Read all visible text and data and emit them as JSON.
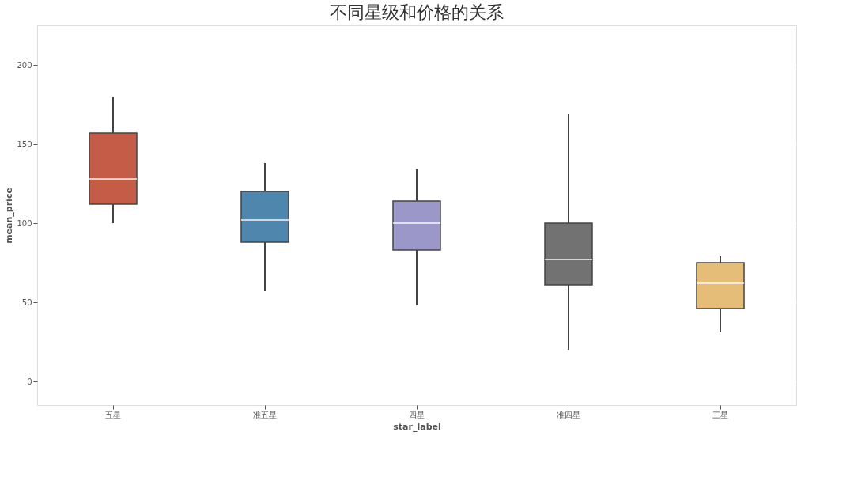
{
  "chart_data": {
    "type": "box",
    "title": "不同星级和价格的关系",
    "xlabel": "star_label",
    "ylabel": "mean_price",
    "categories": [
      "五星",
      "准五星",
      "四星",
      "准四星",
      "三星"
    ],
    "colors": [
      "#c45c48",
      "#4f86ad",
      "#9b97c8",
      "#727272",
      "#e5bc78"
    ],
    "boxes": [
      {
        "low": 100,
        "q1": 112,
        "median": 128,
        "q3": 157,
        "high": 180
      },
      {
        "low": 57,
        "q1": 88,
        "median": 102,
        "q3": 120,
        "high": 138
      },
      {
        "low": 48,
        "q1": 83,
        "median": 100,
        "q3": 114,
        "high": 134
      },
      {
        "low": 20,
        "q1": 61,
        "median": 77,
        "q3": 100,
        "high": 169
      },
      {
        "low": 31,
        "q1": 46,
        "median": 62,
        "q3": 75,
        "high": 79
      }
    ],
    "ylim": [
      -15,
      225
    ],
    "yticks": [
      0,
      50,
      100,
      150,
      200
    ],
    "grid": "y"
  }
}
